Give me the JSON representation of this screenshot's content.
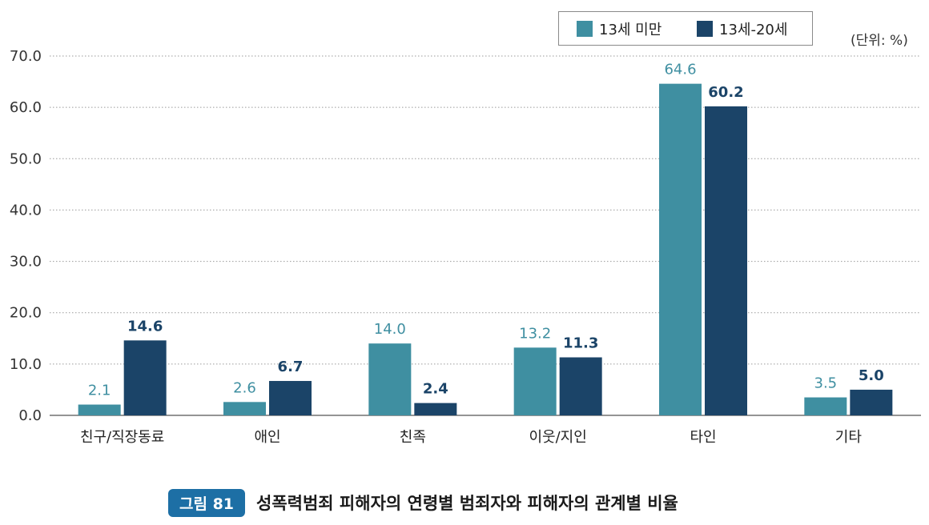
{
  "colors": {
    "series1": "#3f8fa1",
    "series2": "#1b4468"
  },
  "legend": {
    "series1": "13세 미만",
    "series2": "13세-20세"
  },
  "unit_label": "(단위: %)",
  "caption": {
    "badge": "그림 81",
    "title": "성폭력범죄 피해자의 연령별 범죄자와 피해자의 관계별 비율"
  },
  "chart_data": {
    "type": "bar",
    "categories": [
      "친구/직장동료",
      "애인",
      "친족",
      "이웃/지인",
      "타인",
      "기타"
    ],
    "series": [
      {
        "name": "13세 미만",
        "values": [
          2.1,
          2.6,
          14.0,
          13.2,
          64.6,
          3.5
        ]
      },
      {
        "name": "13세-20세",
        "values": [
          14.6,
          6.7,
          2.4,
          11.3,
          60.2,
          5.0
        ]
      }
    ],
    "ylim": [
      0,
      70
    ],
    "yticks": [
      "0.0",
      "10.0",
      "20.0",
      "30.0",
      "40.0",
      "50.0",
      "60.0",
      "70.0"
    ],
    "grid": true,
    "legend_position": "top-right"
  }
}
